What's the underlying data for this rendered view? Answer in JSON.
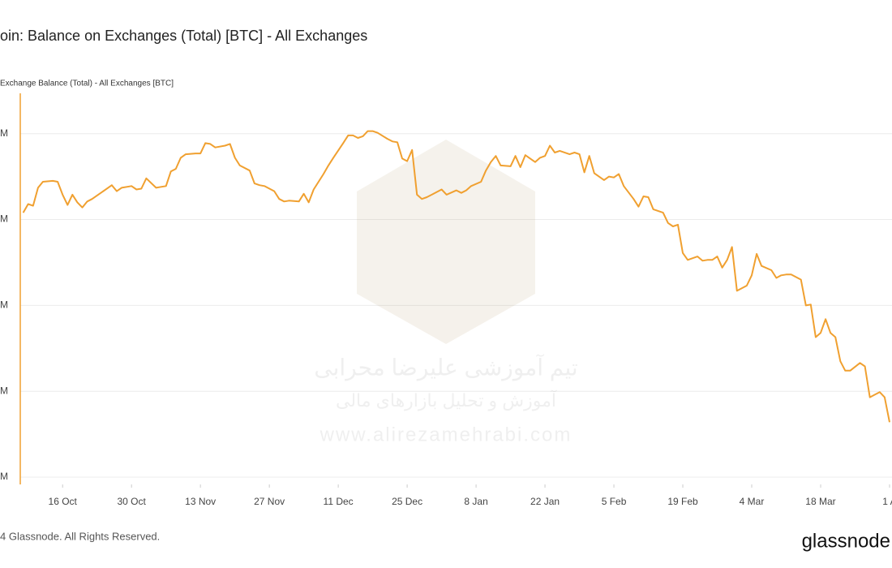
{
  "chart_data": {
    "type": "line",
    "title": "oin: Balance on Exchanges (Total) [BTC] - All Exchanges",
    "footer": "4 Glassnode. All Rights Reserved.",
    "brand": "glassnode",
    "watermark": [
      "تیم آموزشی علیرضا محرابی",
      "آموزش و تحلیل بازارهای مالی",
      "www.alirezamehrabi.com"
    ],
    "x": [
      -8,
      -7,
      -6,
      -5,
      -4,
      -2,
      -1,
      0,
      1,
      2,
      3,
      4,
      5,
      6,
      7,
      8,
      10,
      11,
      12,
      14,
      15,
      16,
      17,
      19,
      20,
      21,
      22,
      23,
      24,
      25,
      27,
      28,
      29,
      30,
      31,
      33,
      34,
      35,
      36,
      38,
      39,
      40,
      41,
      43,
      44,
      45,
      46,
      48,
      49,
      50,
      51,
      53,
      54,
      55,
      57,
      58,
      59,
      60,
      61,
      62,
      63,
      64,
      66,
      67,
      68,
      69,
      70,
      71,
      72,
      73,
      74,
      75,
      77,
      78,
      80,
      81,
      82,
      83,
      85,
      86,
      87,
      88,
      89,
      91,
      92,
      93,
      94,
      96,
      97,
      98,
      99,
      100,
      101,
      103,
      104,
      105,
      106,
      107,
      108,
      110,
      111,
      112,
      113,
      114,
      116,
      117,
      118,
      119,
      120,
      122,
      123,
      124,
      125,
      126,
      127,
      129,
      130,
      131,
      132,
      133,
      134,
      135,
      136,
      137,
      139,
      140,
      141,
      142,
      144,
      145,
      146,
      147,
      148,
      150,
      151,
      152,
      153,
      154,
      155,
      156,
      157,
      158,
      159,
      160,
      162,
      163,
      164,
      165,
      166,
      167,
      168
    ],
    "series": [
      {
        "name": "Exchange Balance (Total) - All Exchanges [BTC]",
        "color": "#f0a030",
        "values": [
          2208000,
          2218000,
          2216000,
          2237000,
          2244000,
          2245000,
          2244000,
          2229000,
          2217000,
          2229000,
          2220000,
          2214000,
          2221000,
          2224000,
          2228000,
          2232000,
          2240000,
          2233000,
          2237000,
          2239000,
          2235000,
          2236000,
          2248000,
          2237000,
          2238000,
          2239000,
          2256000,
          2259000,
          2272000,
          2276000,
          2277000,
          2277000,
          2289000,
          2288000,
          2284000,
          2286000,
          2288000,
          2272000,
          2263000,
          2257000,
          2242000,
          2240000,
          2239000,
          2233000,
          2224000,
          2221000,
          2222000,
          2221000,
          2230000,
          2220000,
          2235000,
          2253000,
          2263000,
          2272000,
          2289000,
          2298000,
          2298000,
          2295000,
          2297000,
          2303000,
          2303000,
          2301000,
          2294000,
          2291000,
          2290000,
          2271000,
          2268000,
          2281000,
          2229000,
          2224000,
          2226000,
          2229000,
          2235000,
          2229000,
          2234000,
          2231000,
          2234000,
          2239000,
          2244000,
          2257000,
          2267000,
          2274000,
          2263000,
          2262000,
          2274000,
          2261000,
          2275000,
          2267000,
          2272000,
          2274000,
          2286000,
          2278000,
          2280000,
          2276000,
          2278000,
          2276000,
          2255000,
          2274000,
          2254000,
          2246000,
          2250000,
          2249000,
          2253000,
          2239000,
          2224000,
          2215000,
          2227000,
          2226000,
          2212000,
          2208000,
          2196000,
          2192000,
          2194000,
          2161000,
          2153000,
          2157000,
          2152000,
          2153000,
          2153000,
          2157000,
          2144000,
          2153000,
          2168000,
          2117000,
          2123000,
          2135000,
          2160000,
          2146000,
          2141000,
          2132000,
          2135000,
          2136000,
          2136000,
          2130000,
          2100000,
          2101000,
          2063000,
          2068000,
          2084000,
          2068000,
          2063000,
          2035000,
          2024000,
          2024000,
          2033000,
          2029000,
          1993000,
          1996000,
          1999000,
          1993000,
          1964000
        ]
      }
    ],
    "xlim": [
      -8.6,
      168.5
    ],
    "xticks": [
      {
        "value": 0,
        "label": "16 Oct"
      },
      {
        "value": 14,
        "label": "30 Oct"
      },
      {
        "value": 28,
        "label": "13 Nov"
      },
      {
        "value": 42,
        "label": "27 Nov"
      },
      {
        "value": 56,
        "label": "11 Dec"
      },
      {
        "value": 70,
        "label": "25 Dec"
      },
      {
        "value": 84,
        "label": "8 Jan"
      },
      {
        "value": 98,
        "label": "22 Jan"
      },
      {
        "value": 112,
        "label": "5 Feb"
      },
      {
        "value": 126,
        "label": "19 Feb"
      },
      {
        "value": 140,
        "label": "4 Mar"
      },
      {
        "value": 154,
        "label": "18 Mar"
      },
      {
        "value": 168,
        "label": "1 A"
      }
    ],
    "ylim": [
      1891500,
      2347000
    ],
    "yticks": [
      {
        "value": 2300000,
        "label": "M"
      },
      {
        "value": 2200000,
        "label": "M"
      },
      {
        "value": 2100000,
        "label": "M"
      },
      {
        "value": 2000000,
        "label": "M"
      },
      {
        "value": 1900000,
        "label": "M"
      }
    ],
    "grid": true
  }
}
